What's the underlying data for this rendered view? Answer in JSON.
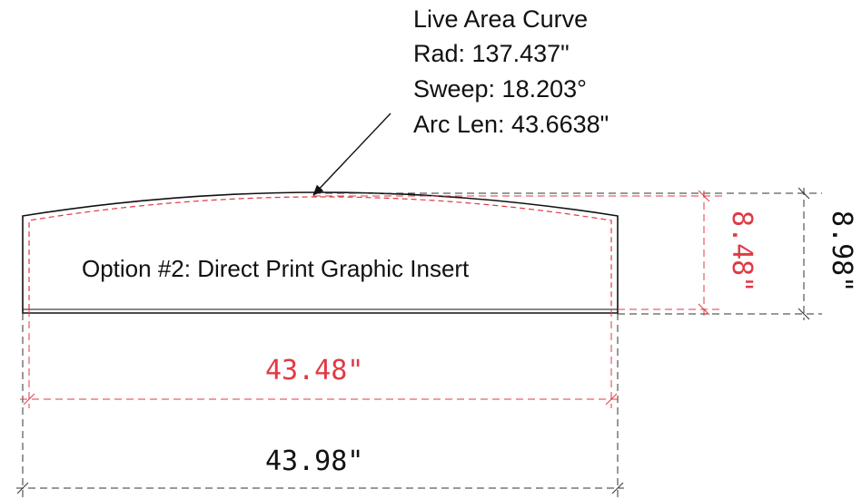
{
  "callout": {
    "line1": "Live Area Curve",
    "line2": "Rad: 137.437\"",
    "line3": "Sweep: 18.203°",
    "line4": "Arc Len: 43.6638\""
  },
  "insert": {
    "label": "Option #2: Direct Print Graphic Insert"
  },
  "dimensions": {
    "live_width": "43.48\"",
    "overall_width": "43.98\"",
    "live_height": "8.48\"",
    "overall_height": "8.98\""
  },
  "colors": {
    "outline": "#111111",
    "live_area": "#e03a45",
    "dimension": "#333333"
  }
}
